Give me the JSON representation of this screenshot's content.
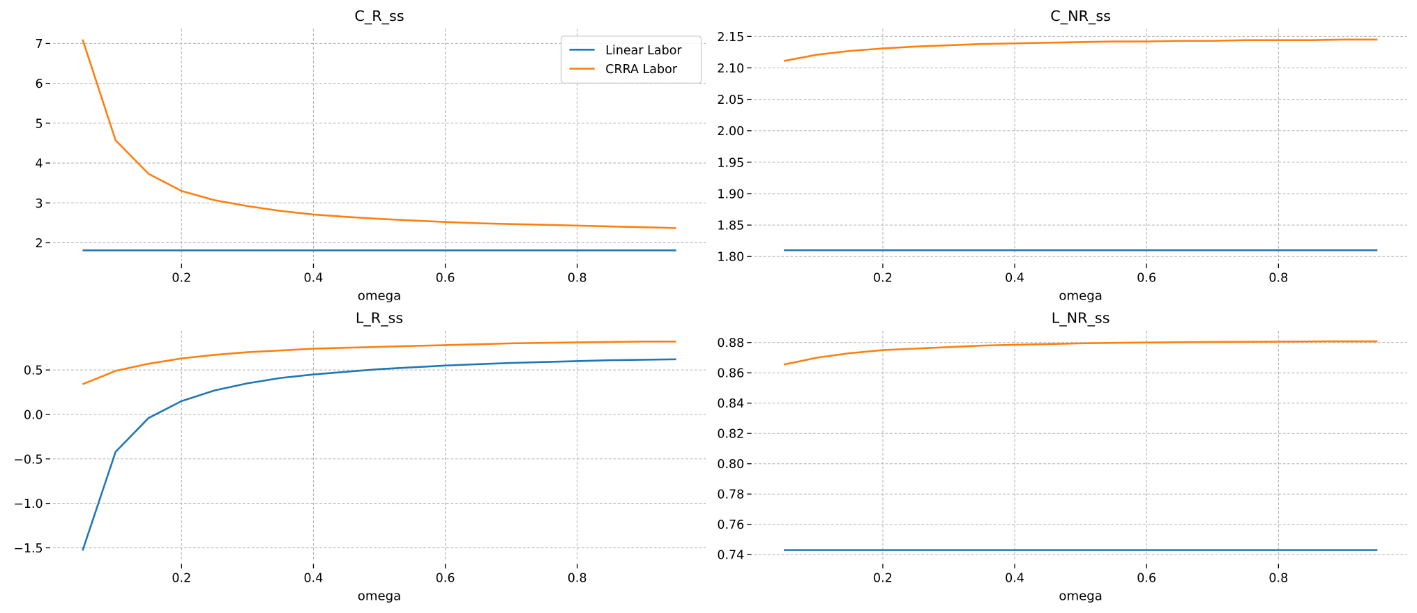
{
  "chart_data": [
    {
      "type": "line",
      "title": "C_R_ss",
      "xlabel": "omega",
      "ylabel": "",
      "x": [
        0.05,
        0.1,
        0.15,
        0.2,
        0.25,
        0.3,
        0.35,
        0.4,
        0.45,
        0.5,
        0.55,
        0.6,
        0.65,
        0.7,
        0.75,
        0.8,
        0.85,
        0.9,
        0.95
      ],
      "xlim": [
        0.005,
        0.995
      ],
      "ylim": [
        1.545,
        7.365
      ],
      "xticks": [
        0.2,
        0.4,
        0.6,
        0.8
      ],
      "xtick_labels": [
        "0.2",
        "0.4",
        "0.6",
        "0.8"
      ],
      "yticks": [
        2,
        3,
        4,
        5,
        6,
        7
      ],
      "ytick_labels": [
        "2",
        "3",
        "4",
        "5",
        "6",
        "7"
      ],
      "grid": true,
      "legend": "top-right",
      "series": [
        {
          "name": "Linear Labor",
          "color": "#1f77b4",
          "values": [
            1.81,
            1.81,
            1.81,
            1.81,
            1.81,
            1.81,
            1.81,
            1.81,
            1.81,
            1.81,
            1.81,
            1.81,
            1.81,
            1.81,
            1.81,
            1.81,
            1.81,
            1.81,
            1.81
          ]
        },
        {
          "name": "CRRA Labor",
          "color": "#ff7f0e",
          "values": [
            7.1,
            4.57,
            3.73,
            3.3,
            3.07,
            2.92,
            2.8,
            2.71,
            2.65,
            2.6,
            2.56,
            2.52,
            2.49,
            2.47,
            2.45,
            2.43,
            2.41,
            2.39,
            2.37
          ]
        }
      ]
    },
    {
      "type": "line",
      "title": "C_NR_ss",
      "xlabel": "omega",
      "ylabel": "",
      "x": [
        0.05,
        0.1,
        0.15,
        0.2,
        0.25,
        0.3,
        0.35,
        0.4,
        0.45,
        0.5,
        0.55,
        0.6,
        0.65,
        0.7,
        0.75,
        0.8,
        0.85,
        0.9,
        0.95
      ],
      "xlim": [
        0.005,
        0.995
      ],
      "ylim": [
        1.793,
        2.162
      ],
      "xticks": [
        0.2,
        0.4,
        0.6,
        0.8
      ],
      "xtick_labels": [
        "0.2",
        "0.4",
        "0.6",
        "0.8"
      ],
      "yticks": [
        1.8,
        1.85,
        1.9,
        1.95,
        2.0,
        2.05,
        2.1,
        2.15
      ],
      "ytick_labels": [
        "1.80",
        "1.85",
        "1.90",
        "1.95",
        "2.00",
        "2.05",
        "2.10",
        "2.15"
      ],
      "grid": true,
      "series": [
        {
          "name": "Linear Labor",
          "color": "#1f77b4",
          "values": [
            1.81,
            1.81,
            1.81,
            1.81,
            1.81,
            1.81,
            1.81,
            1.81,
            1.81,
            1.81,
            1.81,
            1.81,
            1.81,
            1.81,
            1.81,
            1.81,
            1.81,
            1.81,
            1.81
          ]
        },
        {
          "name": "CRRA Labor",
          "color": "#ff7f0e",
          "values": [
            2.111,
            2.121,
            2.127,
            2.131,
            2.134,
            2.136,
            2.138,
            2.139,
            2.14,
            2.141,
            2.142,
            2.142,
            2.143,
            2.143,
            2.144,
            2.144,
            2.144,
            2.145,
            2.145
          ]
        }
      ]
    },
    {
      "type": "line",
      "title": "L_R_ss",
      "xlabel": "omega",
      "ylabel": "",
      "x": [
        0.05,
        0.1,
        0.15,
        0.2,
        0.25,
        0.3,
        0.35,
        0.4,
        0.45,
        0.5,
        0.55,
        0.6,
        0.65,
        0.7,
        0.75,
        0.8,
        0.85,
        0.9,
        0.95
      ],
      "xlim": [
        0.005,
        0.995
      ],
      "ylim": [
        -1.65,
        0.94
      ],
      "xticks": [
        0.2,
        0.4,
        0.6,
        0.8
      ],
      "xtick_labels": [
        "0.2",
        "0.4",
        "0.6",
        "0.8"
      ],
      "yticks": [
        -1.5,
        -1.0,
        -0.5,
        0.0,
        0.5
      ],
      "ytick_labels": [
        "−1.5",
        "−1.0",
        "−0.5",
        "0.0",
        "0.5"
      ],
      "grid": true,
      "series": [
        {
          "name": "Linear Labor",
          "color": "#1f77b4",
          "values": [
            -1.53,
            -0.42,
            -0.04,
            0.15,
            0.27,
            0.35,
            0.41,
            0.45,
            0.48,
            0.51,
            0.53,
            0.55,
            0.565,
            0.58,
            0.59,
            0.6,
            0.61,
            0.615,
            0.62
          ]
        },
        {
          "name": "CRRA Labor",
          "color": "#ff7f0e",
          "values": [
            0.34,
            0.49,
            0.57,
            0.63,
            0.67,
            0.7,
            0.72,
            0.74,
            0.75,
            0.76,
            0.77,
            0.78,
            0.79,
            0.8,
            0.805,
            0.81,
            0.815,
            0.82,
            0.82
          ]
        }
      ]
    },
    {
      "type": "line",
      "title": "L_NR_ss",
      "xlabel": "omega",
      "ylabel": "",
      "x": [
        0.05,
        0.1,
        0.15,
        0.2,
        0.25,
        0.3,
        0.35,
        0.4,
        0.45,
        0.5,
        0.55,
        0.6,
        0.65,
        0.7,
        0.75,
        0.8,
        0.85,
        0.9,
        0.95
      ],
      "xlim": [
        0.005,
        0.995
      ],
      "ylim": [
        0.7357,
        0.8877
      ],
      "xticks": [
        0.2,
        0.4,
        0.6,
        0.8
      ],
      "xtick_labels": [
        "0.2",
        "0.4",
        "0.6",
        "0.8"
      ],
      "yticks": [
        0.74,
        0.76,
        0.78,
        0.8,
        0.82,
        0.84,
        0.86,
        0.88
      ],
      "ytick_labels": [
        "0.74",
        "0.76",
        "0.78",
        "0.80",
        "0.82",
        "0.84",
        "0.86",
        "0.88"
      ],
      "grid": true,
      "series": [
        {
          "name": "Linear Labor",
          "color": "#1f77b4",
          "values": [
            0.743,
            0.743,
            0.743,
            0.743,
            0.743,
            0.743,
            0.743,
            0.743,
            0.743,
            0.743,
            0.743,
            0.743,
            0.743,
            0.743,
            0.743,
            0.743,
            0.743,
            0.743,
            0.743
          ]
        },
        {
          "name": "CRRA Labor",
          "color": "#ff7f0e",
          "values": [
            0.8655,
            0.87,
            0.873,
            0.875,
            0.876,
            0.877,
            0.878,
            0.8785,
            0.879,
            0.8795,
            0.8798,
            0.88,
            0.8802,
            0.8804,
            0.8805,
            0.8806,
            0.8807,
            0.8808,
            0.8808
          ]
        }
      ]
    }
  ]
}
